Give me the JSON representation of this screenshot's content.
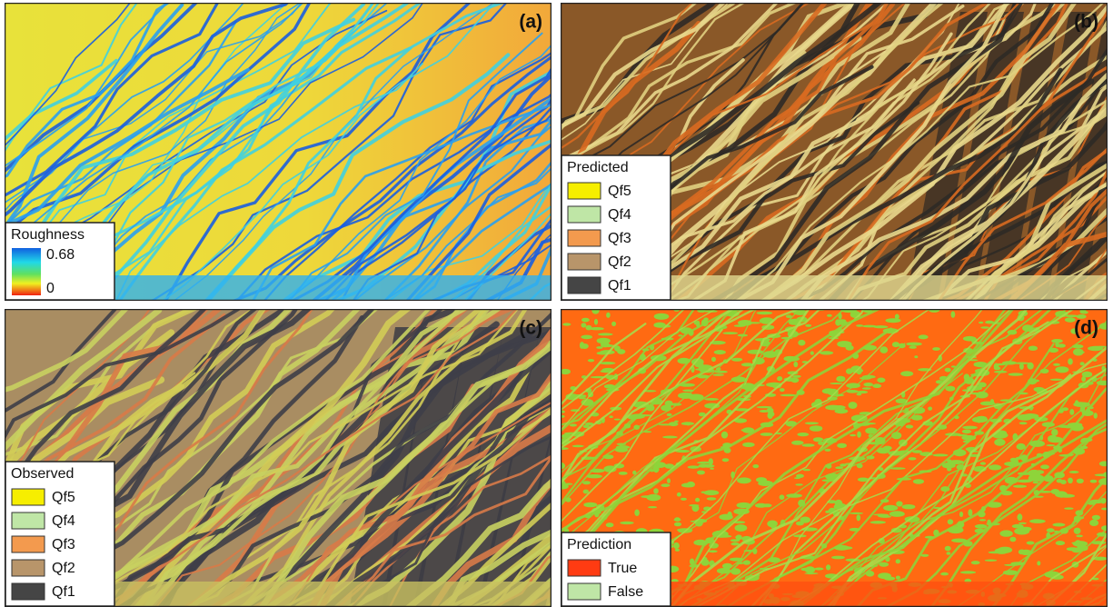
{
  "panels": [
    {
      "label": "(a)",
      "legend": {
        "title": "Roughness",
        "max": 0.68,
        "min": 0
      }
    },
    {
      "label": "(b)",
      "legend": {
        "title": "Predicted",
        "items": [
          {
            "name": "Qf5",
            "color": "#f6ee00"
          },
          {
            "name": "Qf4",
            "color": "#bfe6a6"
          },
          {
            "name": "Qf3",
            "color": "#f39a4e"
          },
          {
            "name": "Qf2",
            "color": "#b8956a"
          },
          {
            "name": "Qf1",
            "color": "#454545"
          }
        ]
      }
    },
    {
      "label": "(c)",
      "legend": {
        "title": "Observed",
        "items": [
          {
            "name": "Qf5",
            "color": "#f6ee00"
          },
          {
            "name": "Qf4",
            "color": "#bfe6a6"
          },
          {
            "name": "Qf3",
            "color": "#f39a4e"
          },
          {
            "name": "Qf2",
            "color": "#b8956a"
          },
          {
            "name": "Qf1",
            "color": "#454545"
          }
        ]
      }
    },
    {
      "label": "(d)",
      "legend": {
        "title": "Prediction",
        "items": [
          {
            "name": "True",
            "color": "#ff3b12"
          },
          {
            "name": "False",
            "color": "#bfe6a6"
          }
        ]
      }
    }
  ]
}
